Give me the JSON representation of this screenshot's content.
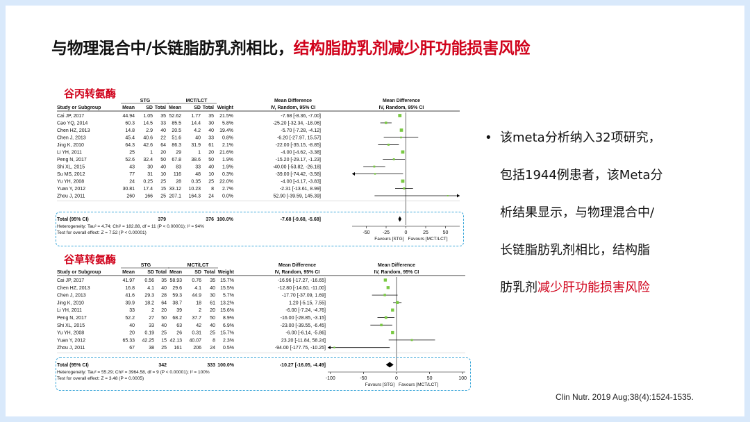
{
  "title": {
    "black": "与物理混合中/长链脂肪乳剂相比，",
    "red": "结构脂肪乳剂减少肝功能损害风险"
  },
  "alt_label": "谷丙转氨酶",
  "ast_label": "谷草转氨酶",
  "bullet": {
    "dot": "•",
    "line1": "该meta分析纳入32项研究，",
    "line2": "包括1944例患者，该Meta分",
    "line3": "析结果显示，与物理混合中/",
    "line4": "长链脂肪乳剂相比，结构脂",
    "line5_black": "肪乳剂",
    "line5_red": "减少肝功能损害风险"
  },
  "citation": "Clin Nutr. 2019 Aug;38(4):1524-1535.",
  "colors": {
    "accent_red": "#d0021b",
    "dash_blue": "#39a6d9",
    "marker_green": "#7ac943",
    "background": "#d9e9fb"
  },
  "chart_data": [
    {
      "type": "forest",
      "header": {
        "group1": "STG",
        "group2": "MCT/LCT",
        "col_study": "Study or Subgroup",
        "col_mean": "Mean",
        "col_sd": "SD",
        "col_total": "Total",
        "col_weight": "Weight",
        "col_md": "Mean Difference",
        "col_md_sub": "IV, Random, 95% CI"
      },
      "rows": [
        {
          "study": "Cai JP, 2017",
          "m1": "44.94",
          "sd1": "1.05",
          "n1": "35",
          "m2": "52.62",
          "sd2": "1.77",
          "n2": "35",
          "weight": "21.5%",
          "ci": "-7.68 [-8.36, -7.00]",
          "md": -7.68,
          "lo": -8.36,
          "hi": -7.0
        },
        {
          "study": "Cao YQ, 2014",
          "m1": "60.3",
          "sd1": "14.5",
          "n1": "33",
          "m2": "85.5",
          "sd2": "14.4",
          "n2": "30",
          "weight": "5.8%",
          "ci": "-25.20 [-32.34, -18.06]",
          "md": -25.2,
          "lo": -32.34,
          "hi": -18.06
        },
        {
          "study": "Chen HZ, 2013",
          "m1": "14.8",
          "sd1": "2.9",
          "n1": "40",
          "m2": "20.5",
          "sd2": "4.2",
          "n2": "40",
          "weight": "19.4%",
          "ci": "-5.70 [-7.28, -4.12]",
          "md": -5.7,
          "lo": -7.28,
          "hi": -4.12
        },
        {
          "study": "Chen J, 2013",
          "m1": "45.4",
          "sd1": "40.6",
          "n1": "22",
          "m2": "51.6",
          "sd2": "40",
          "n2": "33",
          "weight": "0.8%",
          "ci": "-6.20 [-27.97, 15.57]",
          "md": -6.2,
          "lo": -27.97,
          "hi": 15.57
        },
        {
          "study": "Jing K, 2010",
          "m1": "64.3",
          "sd1": "42.6",
          "n1": "64",
          "m2": "86.3",
          "sd2": "31.9",
          "n2": "61",
          "weight": "2.1%",
          "ci": "-22.00 [-35.15, -8.85]",
          "md": -22.0,
          "lo": -35.15,
          "hi": -8.85
        },
        {
          "study": "Li YH, 2011",
          "m1": "25",
          "sd1": "1",
          "n1": "20",
          "m2": "29",
          "sd2": "1",
          "n2": "20",
          "weight": "21.6%",
          "ci": "-4.00 [-4.62, -3.38]",
          "md": -4.0,
          "lo": -4.62,
          "hi": -3.38
        },
        {
          "study": "Peng N, 2017",
          "m1": "52.6",
          "sd1": "32.4",
          "n1": "50",
          "m2": "67.8",
          "sd2": "38.6",
          "n2": "50",
          "weight": "1.9%",
          "ci": "-15.20 [-29.17, -1.23]",
          "md": -15.2,
          "lo": -29.17,
          "hi": -1.23
        },
        {
          "study": "Shi XL, 2015",
          "m1": "43",
          "sd1": "30",
          "n1": "40",
          "m2": "83",
          "sd2": "33",
          "n2": "40",
          "weight": "1.9%",
          "ci": "-40.00 [-53.82, -26.18]",
          "md": -40.0,
          "lo": -53.82,
          "hi": -26.18
        },
        {
          "study": "Su MS, 2012",
          "m1": "77",
          "sd1": "31",
          "n1": "10",
          "m2": "116",
          "sd2": "48",
          "n2": "10",
          "weight": "0.3%",
          "ci": "-39.00 [-74.42, -3.58]",
          "md": -39.0,
          "lo": -74.42,
          "hi": -3.58
        },
        {
          "study": "Yu YH, 2008",
          "m1": "24",
          "sd1": "0.25",
          "n1": "25",
          "m2": "28",
          "sd2": "0.35",
          "n2": "25",
          "weight": "22.0%",
          "ci": "-4.00 [-4.17, -3.83]",
          "md": -4.0,
          "lo": -4.17,
          "hi": -3.83
        },
        {
          "study": "Yuan Y, 2012",
          "m1": "30.81",
          "sd1": "17.4",
          "n1": "15",
          "m2": "33.12",
          "sd2": "10.23",
          "n2": "8",
          "weight": "2.7%",
          "ci": "-2.31 [-13.61, 8.99]",
          "md": -2.31,
          "lo": -13.61,
          "hi": 8.99
        },
        {
          "study": "Zhou J, 2011",
          "m1": "260",
          "sd1": "166",
          "n1": "25",
          "m2": "207.1",
          "sd2": "164.3",
          "n2": "24",
          "weight": "0.0%",
          "ci": "52.90 [-39.59, 145.39]",
          "md": 52.9,
          "lo": -39.59,
          "hi": 145.39
        }
      ],
      "total": {
        "label": "Total (95% CI)",
        "n1": "379",
        "n2": "376",
        "weight": "100.0%",
        "ci": "-7.68 [-9.68, -5.68]",
        "md": -7.68,
        "lo": -9.68,
        "hi": -5.68
      },
      "heterogeneity": "Heterogeneity: Tau² = 4.74; Chi² = 182.88, df = 11 (P < 0.00001); I² = 94%",
      "overall": "Test for overall effect: Z = 7.52 (P < 0.00001)",
      "axis": {
        "ticks": [
          -50,
          -25,
          0,
          25,
          50
        ],
        "xlim": [
          -68,
          68
        ],
        "fav_left": "Favours [STG]",
        "fav_right": "Favours [MCT/LCT]"
      }
    },
    {
      "type": "forest",
      "header": {
        "group1": "STG",
        "group2": "MCT/LCT",
        "col_study": "Study or Subgroup",
        "col_mean": "Mean",
        "col_sd": "SD",
        "col_total": "Total",
        "col_weight": "Weight",
        "col_md": "Mean Difference",
        "col_md_sub": "IV, Random, 95% CI"
      },
      "rows": [
        {
          "study": "Cai JP, 2017",
          "m1": "41.97",
          "sd1": "0.56",
          "n1": "35",
          "m2": "58.93",
          "sd2": "0.76",
          "n2": "35",
          "weight": "15.7%",
          "ci": "-16.96 [-17.27, -16.65]",
          "md": -16.96,
          "lo": -17.27,
          "hi": -16.65
        },
        {
          "study": "Chen HZ, 2013",
          "m1": "16.8",
          "sd1": "4.1",
          "n1": "40",
          "m2": "29.6",
          "sd2": "4.1",
          "n2": "40",
          "weight": "15.5%",
          "ci": "-12.80 [-14.60, -11.00]",
          "md": -12.8,
          "lo": -14.6,
          "hi": -11.0
        },
        {
          "study": "Chen J, 2013",
          "m1": "41.6",
          "sd1": "29.3",
          "n1": "28",
          "m2": "59.3",
          "sd2": "44.9",
          "n2": "30",
          "weight": "5.7%",
          "ci": "-17.70 [-37.09, 1.69]",
          "md": -17.7,
          "lo": -37.09,
          "hi": 1.69
        },
        {
          "study": "Jing K, 2010",
          "m1": "39.9",
          "sd1": "18.2",
          "n1": "64",
          "m2": "38.7",
          "sd2": "18",
          "n2": "61",
          "weight": "13.2%",
          "ci": "1.20 [-5.15, 7.55]",
          "md": 1.2,
          "lo": -5.15,
          "hi": 7.55
        },
        {
          "study": "Li YH, 2011",
          "m1": "33",
          "sd1": "2",
          "n1": "20",
          "m2": "39",
          "sd2": "2",
          "n2": "20",
          "weight": "15.6%",
          "ci": "-6.00 [-7.24, -4.76]",
          "md": -6.0,
          "lo": -7.24,
          "hi": -4.76
        },
        {
          "study": "Peng N, 2017",
          "m1": "52.2",
          "sd1": "27",
          "n1": "50",
          "m2": "68.2",
          "sd2": "37.7",
          "n2": "50",
          "weight": "8.9%",
          "ci": "-16.00 [-28.85, -3.15]",
          "md": -16.0,
          "lo": -28.85,
          "hi": -3.15
        },
        {
          "study": "Shi XL, 2015",
          "m1": "40",
          "sd1": "33",
          "n1": "40",
          "m2": "63",
          "sd2": "42",
          "n2": "40",
          "weight": "6.9%",
          "ci": "-23.00 [-39.55, -6.45]",
          "md": -23.0,
          "lo": -39.55,
          "hi": -6.45
        },
        {
          "study": "Yu YH, 2008",
          "m1": "20",
          "sd1": "0.19",
          "n1": "25",
          "m2": "26",
          "sd2": "0.31",
          "n2": "25",
          "weight": "15.7%",
          "ci": "-6.00 [-6.14, -5.86]",
          "md": -6.0,
          "lo": -6.14,
          "hi": -5.86
        },
        {
          "study": "Yuan Y, 2012",
          "m1": "65.33",
          "sd1": "42.25",
          "n1": "15",
          "m2": "42.13",
          "sd2": "40.07",
          "n2": "8",
          "weight": "2.3%",
          "ci": "23.20 [-11.84, 58.24]",
          "md": 23.2,
          "lo": -11.84,
          "hi": 58.24
        },
        {
          "study": "Zhou J, 2011",
          "m1": "67",
          "sd1": "38",
          "n1": "25",
          "m2": "161",
          "sd2": "206",
          "n2": "24",
          "weight": "0.5%",
          "ci": "-94.00 [-177.75, -10.25]",
          "md": -94.0,
          "lo": -177.75,
          "hi": -10.25
        }
      ],
      "total": {
        "label": "Total (95% CI)",
        "n1": "342",
        "n2": "333",
        "weight": "100.0%",
        "ci": "-10.27 [-16.05, -4.49]",
        "md": -10.27,
        "lo": -16.05,
        "hi": -4.49
      },
      "heterogeneity": "Heterogeneity: Tau² = 55.29; Chi² = 3964.58, df = 9 (P < 0.00001); I² = 100%",
      "overall": "Test for overall effect: Z = 3.48 (P = 0.0005)",
      "axis": {
        "ticks": [
          -100,
          -50,
          0,
          50,
          100
        ],
        "xlim": [
          -104,
          104
        ],
        "fav_left": "Favours [STG]",
        "fav_right": "Favours [MCT/LCT]"
      }
    }
  ]
}
